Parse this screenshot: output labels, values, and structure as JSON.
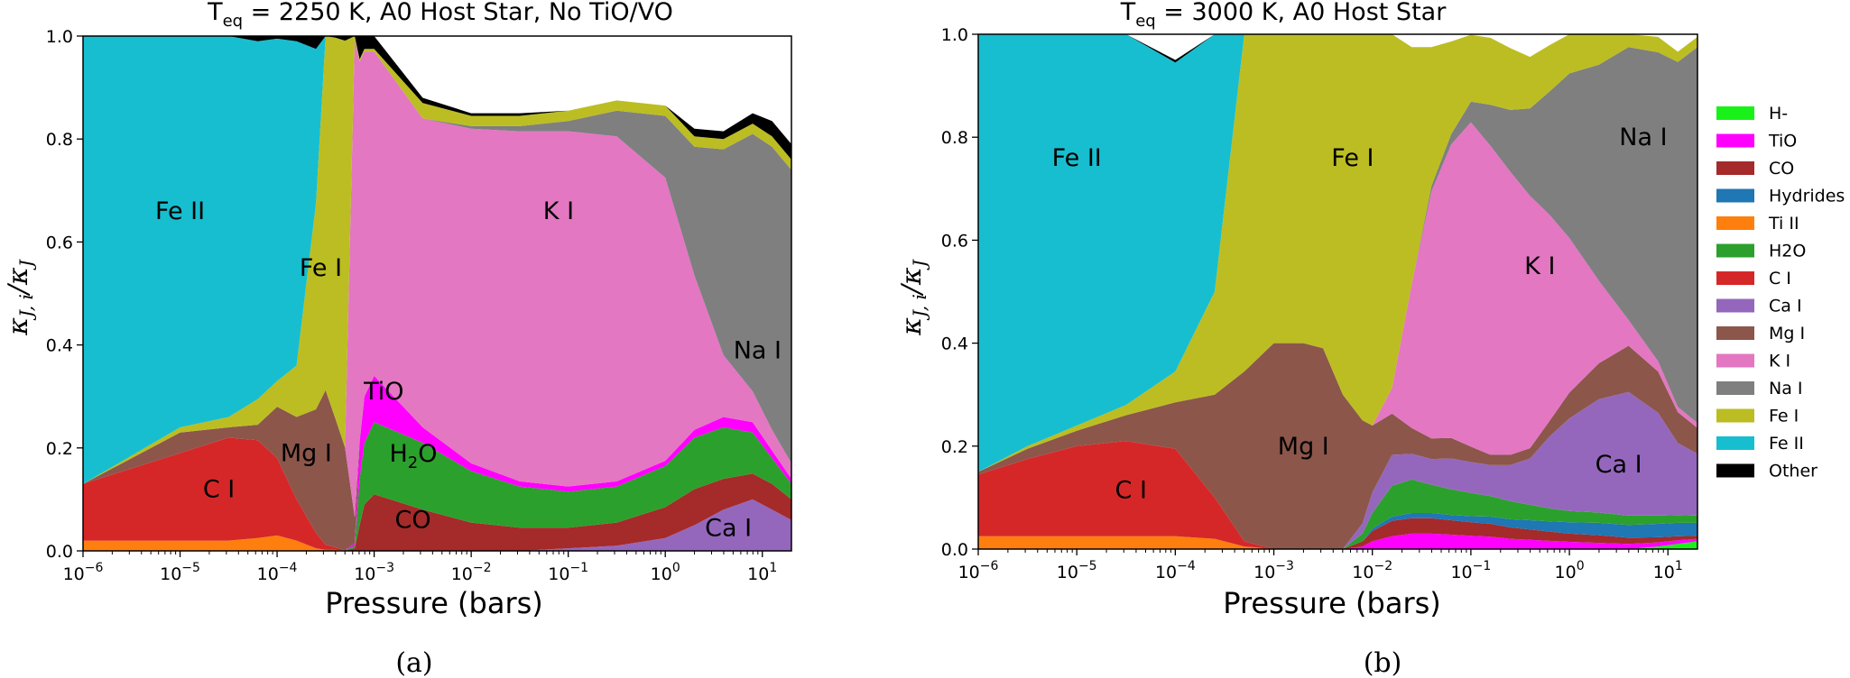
{
  "caption_a": "(a)",
  "caption_b": "(b)",
  "legend": [
    {
      "name": "H-",
      "color": "#19f219"
    },
    {
      "name": "TiO",
      "color": "#ff00ff"
    },
    {
      "name": "CO",
      "color": "#a52a2a"
    },
    {
      "name": "Hydrides",
      "color": "#1f77b4"
    },
    {
      "name": "Ti II",
      "color": "#ff7f0e"
    },
    {
      "name": "H2O",
      "color": "#2ca02c"
    },
    {
      "name": "C I",
      "color": "#d62728"
    },
    {
      "name": "Ca I",
      "color": "#9467bd"
    },
    {
      "name": "Mg I",
      "color": "#8c564b"
    },
    {
      "name": "K I",
      "color": "#e377c2"
    },
    {
      "name": "Na I",
      "color": "#7f7f7f"
    },
    {
      "name": "Fe I",
      "color": "#bcbd22"
    },
    {
      "name": "Fe II",
      "color": "#17becf"
    },
    {
      "name": "Other",
      "color": "#000000"
    }
  ],
  "chart_data": [
    {
      "type": "area",
      "stacked": true,
      "title_main": "T",
      "title_sub": "eq",
      "title_rest": " = 2250 K, A0 Host Star, No TiO/VO",
      "xlabel": "Pressure (bars)",
      "ylabel_main": "κ",
      "ylabel_sub1": "J, i",
      "ylabel_mid": "/κ",
      "ylabel_sub2": "J",
      "xscale": "log",
      "xlim": [
        -6,
        1.3
      ],
      "ylim": [
        0,
        1
      ],
      "x_tick_labels": [
        {
          "base": "10",
          "exp": "−6"
        },
        {
          "base": "10",
          "exp": "−5"
        },
        {
          "base": "10",
          "exp": "−4"
        },
        {
          "base": "10",
          "exp": "−3"
        },
        {
          "base": "10",
          "exp": "−2"
        },
        {
          "base": "10",
          "exp": "−1"
        },
        {
          "base": "10",
          "exp": "0"
        },
        {
          "base": "10",
          "exp": "1"
        }
      ],
      "y_tick_labels": [
        "0.0",
        "0.2",
        "0.4",
        "0.6",
        "0.8",
        "1.0"
      ],
      "log10_pressure": [
        -6,
        -5.5,
        -5,
        -4.5,
        -4.2,
        -4,
        -3.8,
        -3.6,
        -3.5,
        -3.4,
        -3.3,
        -3.2,
        -3.15,
        -3.1,
        -3,
        -2.5,
        -2,
        -1.5,
        -1,
        -0.5,
        0,
        0.3,
        0.6,
        0.9,
        1.1,
        1.3
      ],
      "series": [
        {
          "name": "Ti II",
          "values": [
            0.02,
            0.02,
            0.02,
            0.02,
            0.025,
            0.03,
            0.02,
            0.005,
            0.002,
            0.002,
            0.001,
            0,
            0,
            0,
            0,
            0,
            0,
            0,
            0,
            0,
            0,
            0,
            0,
            0,
            0,
            0
          ]
        },
        {
          "name": "Ca I",
          "values": [
            0,
            0,
            0,
            0,
            0,
            0,
            0,
            0,
            0,
            0,
            0,
            0,
            0,
            0,
            0,
            0,
            0,
            0,
            0.005,
            0.01,
            0.025,
            0.05,
            0.08,
            0.1,
            0.08,
            0.06
          ]
        },
        {
          "name": "C I",
          "values": [
            0.11,
            0.14,
            0.17,
            0.2,
            0.19,
            0.15,
            0.08,
            0.03,
            0.01,
            0.005,
            0,
            0,
            0,
            0,
            0,
            0,
            0,
            0,
            0,
            0,
            0,
            0,
            0,
            0,
            0,
            0
          ]
        },
        {
          "name": "CO",
          "values": [
            0,
            0,
            0,
            0,
            0,
            0,
            0,
            0,
            0,
            0,
            0,
            0.005,
            0.05,
            0.09,
            0.11,
            0.08,
            0.055,
            0.045,
            0.04,
            0.045,
            0.06,
            0.07,
            0.06,
            0.05,
            0.05,
            0.04
          ]
        },
        {
          "name": "H2O",
          "values": [
            0,
            0,
            0,
            0,
            0,
            0,
            0,
            0,
            0,
            0,
            0,
            0.005,
            0.09,
            0.12,
            0.14,
            0.13,
            0.1,
            0.08,
            0.07,
            0.07,
            0.08,
            0.1,
            0.1,
            0.08,
            0.05,
            0.03
          ]
        },
        {
          "name": "TiO",
          "values": [
            0,
            0,
            0,
            0,
            0,
            0,
            0,
            0,
            0,
            0,
            0,
            0.005,
            0.07,
            0.09,
            0.09,
            0.03,
            0.015,
            0.01,
            0.01,
            0.01,
            0.01,
            0.015,
            0.02,
            0.02,
            0.015,
            0.01
          ]
        },
        {
          "name": "Mg I",
          "values": [
            0,
            0.02,
            0.04,
            0.02,
            0.03,
            0.1,
            0.16,
            0.24,
            0.3,
            0.25,
            0.2,
            0.05,
            0.005,
            0,
            0,
            0,
            0,
            0,
            0,
            0,
            0,
            0,
            0,
            0,
            0,
            0
          ]
        },
        {
          "name": "K I",
          "values": [
            0,
            0,
            0,
            0,
            0,
            0,
            0,
            0,
            0,
            0,
            0,
            0.93,
            0.735,
            0.67,
            0.63,
            0.6,
            0.65,
            0.68,
            0.69,
            0.67,
            0.55,
            0.3,
            0.12,
            0.06,
            0.04,
            0.03
          ]
        },
        {
          "name": "Na I",
          "values": [
            0,
            0,
            0,
            0,
            0,
            0,
            0,
            0,
            0,
            0,
            0,
            0,
            0,
            0,
            0,
            0,
            0.005,
            0.01,
            0.02,
            0.05,
            0.12,
            0.25,
            0.4,
            0.5,
            0.55,
            0.57
          ]
        },
        {
          "name": "Fe I",
          "values": [
            0,
            0.005,
            0.01,
            0.02,
            0.05,
            0.05,
            0.1,
            0.4,
            0.69,
            0.74,
            0.79,
            0.005,
            0.005,
            0.005,
            0.005,
            0.03,
            0.02,
            0.02,
            0.02,
            0.02,
            0.02,
            0.02,
            0.02,
            0.02,
            0.02,
            0.02
          ]
        },
        {
          "name": "Fe II",
          "values": [
            0.87,
            0.815,
            0.76,
            0.75,
            0.695,
            0.665,
            0.63,
            0.3,
            0,
            0,
            0,
            0,
            0,
            0,
            0,
            0,
            0,
            0,
            0,
            0,
            0,
            0,
            0,
            0,
            0,
            0
          ]
        },
        {
          "name": "Other",
          "values": [
            0,
            0,
            0,
            0.01,
            0.01,
            0.005,
            0.01,
            0.025,
            0,
            0.01,
            0.01,
            0,
            0.045,
            0.035,
            0.025,
            0.01,
            0.005,
            0.005,
            0,
            0,
            0,
            0.015,
            0.015,
            0.02,
            0.03,
            0.03
          ]
        }
      ],
      "annotations": [
        {
          "text": "Fe II",
          "x": -5,
          "y": 0.66
        },
        {
          "text": "Fe I",
          "x": -3.55,
          "y": 0.55
        },
        {
          "text": "K I",
          "x": -1.1,
          "y": 0.66
        },
        {
          "text": "Na I",
          "x": 0.95,
          "y": 0.39
        },
        {
          "text": "TiO",
          "x": -2.9,
          "y": 0.31
        },
        {
          "text": "Mg I",
          "x": -3.7,
          "y": 0.19
        },
        {
          "text": "C I",
          "x": -4.6,
          "y": 0.12
        },
        {
          "text": "CO",
          "x": -2.6,
          "y": 0.06
        },
        {
          "text": "Ca I",
          "x": 0.65,
          "y": 0.045
        }
      ]
    },
    {
      "type": "area",
      "stacked": true,
      "title_main": "T",
      "title_sub": "eq",
      "title_rest": " = 3000 K, A0 Host Star",
      "xlabel": "Pressure (bars)",
      "ylabel_main": "κ",
      "ylabel_sub1": "J, i",
      "ylabel_mid": "/κ",
      "ylabel_sub2": "J",
      "xscale": "log",
      "xlim": [
        -6,
        1.3
      ],
      "ylim": [
        0,
        1
      ],
      "x_tick_labels": [
        {
          "base": "10",
          "exp": "−6"
        },
        {
          "base": "10",
          "exp": "−5"
        },
        {
          "base": "10",
          "exp": "−4"
        },
        {
          "base": "10",
          "exp": "−3"
        },
        {
          "base": "10",
          "exp": "−2"
        },
        {
          "base": "10",
          "exp": "−1"
        },
        {
          "base": "10",
          "exp": "0"
        },
        {
          "base": "10",
          "exp": "1"
        }
      ],
      "y_tick_labels": [
        "0.0",
        "0.2",
        "0.4",
        "0.6",
        "0.8",
        "1.0"
      ],
      "log10_pressure": [
        -6,
        -5.5,
        -5,
        -4.5,
        -4,
        -3.6,
        -3.3,
        -3,
        -2.7,
        -2.5,
        -2.3,
        -2.1,
        -2,
        -1.8,
        -1.6,
        -1.4,
        -1.2,
        -1,
        -0.8,
        -0.6,
        -0.4,
        -0.2,
        0,
        0.3,
        0.6,
        0.9,
        1.1,
        1.3
      ],
      "series": [
        {
          "name": "Ti II",
          "values": [
            0.025,
            0.025,
            0.025,
            0.025,
            0.025,
            0.02,
            0.005,
            0,
            0,
            0,
            0,
            0,
            0,
            0,
            0,
            0,
            0,
            0,
            0,
            0,
            0,
            0,
            0,
            0,
            0,
            0,
            0,
            0
          ]
        },
        {
          "name": "H-",
          "values": [
            0,
            0,
            0,
            0,
            0,
            0,
            0,
            0,
            0,
            0,
            0,
            0,
            0,
            0,
            0,
            0,
            0,
            0,
            0,
            0,
            0,
            0,
            0,
            0,
            0,
            0.005,
            0.01,
            0.015
          ]
        },
        {
          "name": "TiO",
          "values": [
            0,
            0,
            0,
            0,
            0,
            0,
            0,
            0,
            0,
            0,
            0,
            0.005,
            0.015,
            0.025,
            0.03,
            0.03,
            0.028,
            0.026,
            0.024,
            0.02,
            0.018,
            0.016,
            0.014,
            0.012,
            0.01,
            0.008,
            0.007,
            0.005
          ]
        },
        {
          "name": "CO",
          "values": [
            0,
            0,
            0,
            0,
            0,
            0,
            0,
            0,
            0,
            0,
            0,
            0.01,
            0.02,
            0.03,
            0.03,
            0.03,
            0.028,
            0.026,
            0.025,
            0.022,
            0.02,
            0.018,
            0.016,
            0.015,
            0.012,
            0.01,
            0.008,
            0.006
          ]
        },
        {
          "name": "Hydrides",
          "values": [
            0,
            0,
            0,
            0,
            0,
            0,
            0,
            0,
            0,
            0,
            0,
            0,
            0.005,
            0.008,
            0.01,
            0.01,
            0.01,
            0.012,
            0.014,
            0.016,
            0.018,
            0.02,
            0.022,
            0.024,
            0.025,
            0.026,
            0.026,
            0.025
          ]
        },
        {
          "name": "H2O",
          "values": [
            0,
            0,
            0,
            0,
            0,
            0,
            0,
            0,
            0,
            0,
            0,
            0.015,
            0.03,
            0.06,
            0.065,
            0.055,
            0.05,
            0.045,
            0.04,
            0.035,
            0.03,
            0.025,
            0.022,
            0.02,
            0.018,
            0.016,
            0.015,
            0.014
          ]
        },
        {
          "name": "Ca I",
          "values": [
            0,
            0,
            0,
            0,
            0,
            0,
            0,
            0,
            0,
            0,
            0,
            0.02,
            0.04,
            0.06,
            0.05,
            0.05,
            0.06,
            0.06,
            0.06,
            0.07,
            0.09,
            0.14,
            0.18,
            0.22,
            0.24,
            0.2,
            0.14,
            0.12
          ]
        },
        {
          "name": "C I",
          "values": [
            0.12,
            0.15,
            0.175,
            0.185,
            0.17,
            0.08,
            0.01,
            0,
            0,
            0,
            0,
            0,
            0,
            0,
            0,
            0,
            0,
            0,
            0,
            0,
            0,
            0,
            0,
            0,
            0,
            0,
            0,
            0
          ]
        },
        {
          "name": "Mg I",
          "values": [
            0.005,
            0.02,
            0.03,
            0.05,
            0.09,
            0.2,
            0.33,
            0.4,
            0.4,
            0.39,
            0.3,
            0.2,
            0.13,
            0.08,
            0.05,
            0.04,
            0.04,
            0.03,
            0.02,
            0.02,
            0.02,
            0.03,
            0.05,
            0.07,
            0.09,
            0.08,
            0.06,
            0.05
          ]
        },
        {
          "name": "K I",
          "values": [
            0,
            0,
            0,
            0,
            0,
            0,
            0,
            0,
            0,
            0,
            0,
            0,
            0,
            0.05,
            0.28,
            0.48,
            0.57,
            0.63,
            0.6,
            0.55,
            0.49,
            0.4,
            0.3,
            0.16,
            0.05,
            0.02,
            0.01,
            0.01
          ]
        },
        {
          "name": "Na I",
          "values": [
            0,
            0,
            0,
            0,
            0,
            0,
            0,
            0,
            0,
            0,
            0,
            0,
            0,
            0,
            0,
            0.01,
            0.02,
            0.04,
            0.08,
            0.12,
            0.17,
            0.24,
            0.32,
            0.42,
            0.53,
            0.6,
            0.67,
            0.73
          ]
        },
        {
          "name": "Fe I",
          "values": [
            0,
            0.005,
            0.01,
            0.02,
            0.06,
            0.2,
            0.66,
            0.6,
            0.6,
            0.61,
            0.7,
            0.75,
            0.76,
            0.7,
            0.46,
            0.27,
            0.18,
            0.13,
            0.13,
            0.12,
            0.1,
            0.09,
            0.08,
            0.06,
            0.04,
            0.03,
            0.02,
            0.02
          ]
        },
        {
          "name": "Fe II",
          "values": [
            0.85,
            0.8,
            0.76,
            0.72,
            0.6,
            0.5,
            0,
            0,
            0,
            0,
            0,
            0,
            0,
            0,
            0,
            0,
            0,
            0,
            0,
            0,
            0,
            0,
            0,
            0,
            0,
            0,
            0,
            0
          ]
        },
        {
          "name": "Other",
          "values": [
            0,
            0,
            0,
            0,
            0.005,
            0,
            0,
            0,
            0,
            0,
            0,
            0,
            0,
            0,
            0,
            0,
            0,
            0,
            0,
            0,
            0,
            0,
            0,
            0,
            0,
            0,
            0,
            0
          ]
        }
      ],
      "annotations": [
        {
          "text": "Fe II",
          "x": -5,
          "y": 0.76
        },
        {
          "text": "Fe I",
          "x": -2.2,
          "y": 0.76
        },
        {
          "text": "Na I",
          "x": 0.75,
          "y": 0.8
        },
        {
          "text": "K I",
          "x": -0.3,
          "y": 0.55
        },
        {
          "text": "Mg I",
          "x": -2.7,
          "y": 0.2
        },
        {
          "text": "C I",
          "x": -4.45,
          "y": 0.115
        },
        {
          "text": "Ca I",
          "x": 0.5,
          "y": 0.165
        }
      ]
    }
  ]
}
